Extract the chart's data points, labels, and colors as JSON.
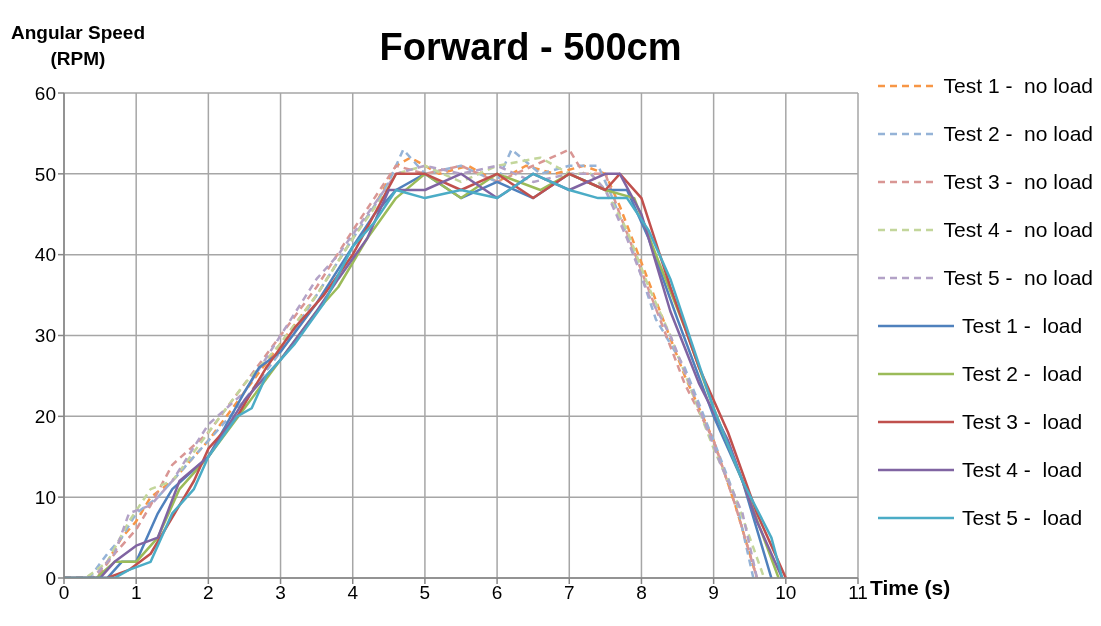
{
  "chart_data": {
    "type": "line",
    "title": "Forward - 500cm",
    "xlabel": "Time (s)",
    "ylabel": "Angular Speed (RPM)",
    "xlim": [
      0,
      11
    ],
    "xticks": [
      0,
      1,
      2,
      3,
      4,
      5,
      6,
      7,
      8,
      9,
      10,
      11
    ],
    "ylim": [
      0,
      60
    ],
    "yticks": [
      0,
      10,
      20,
      30,
      40,
      50,
      60
    ],
    "grid": true,
    "legend": "right",
    "marker": "none",
    "series": [
      {
        "name": "Test 1 -  no load",
        "color": "#f79646",
        "line_style": "dashed",
        "x": [
          0,
          0.4,
          0.6,
          0.8,
          1.0,
          1.2,
          1.5,
          2,
          2.5,
          3,
          3.5,
          4,
          4.3,
          4.6,
          4.8,
          5.2,
          5.6,
          6,
          6.4,
          6.8,
          7.2,
          7.5,
          7.7,
          8,
          8.3,
          8.6,
          9,
          9.3,
          9.6
        ],
        "values": [
          0,
          0,
          2,
          5,
          7,
          10,
          12,
          17,
          23,
          29,
          35,
          42,
          46,
          51,
          52,
          50,
          51,
          49,
          51,
          50,
          51,
          50,
          46,
          39,
          32,
          25,
          17,
          9,
          0
        ]
      },
      {
        "name": "Test 2 -  no load",
        "color": "#95b3d7",
        "line_style": "dashed",
        "x": [
          0,
          0.35,
          0.6,
          0.8,
          1.0,
          1.3,
          1.6,
          2,
          2.5,
          3,
          3.5,
          4,
          4.3,
          4.5,
          4.7,
          5,
          5.5,
          6,
          6.2,
          6.6,
          7,
          7.4,
          7.6,
          7.9,
          8.2,
          8.6,
          9,
          9.3,
          9.55
        ],
        "values": [
          0,
          0,
          3,
          5,
          8,
          10,
          13,
          17,
          22,
          28,
          35,
          42,
          46,
          49,
          53,
          50,
          51,
          49,
          53,
          50,
          51,
          51,
          47,
          40,
          32,
          26,
          17,
          10,
          0
        ]
      },
      {
        "name": "Test 3 -  no load",
        "color": "#d99694",
        "line_style": "dashed",
        "x": [
          0,
          0.45,
          0.7,
          1,
          1.2,
          1.5,
          2,
          2.5,
          3,
          3.5,
          4,
          4.3,
          4.6,
          5,
          5.5,
          6,
          6.5,
          7,
          7.2,
          7.5,
          7.7,
          8,
          8.3,
          8.6,
          9,
          9.3,
          9.6
        ],
        "values": [
          0,
          0,
          3,
          6,
          9,
          14,
          18,
          24,
          30,
          36,
          43,
          47,
          51,
          50,
          51,
          49,
          51,
          53,
          50,
          50,
          45,
          38,
          31,
          24,
          17,
          9,
          0
        ]
      },
      {
        "name": "Test 4 -  no load",
        "color": "#c3d69b",
        "line_style": "dashed",
        "x": [
          0,
          0.3,
          0.6,
          0.9,
          1.2,
          1.5,
          2,
          2.5,
          3,
          3.5,
          4,
          4.4,
          4.6,
          5,
          5.5,
          6,
          6.6,
          7,
          7.3,
          7.5,
          7.8,
          8.1,
          8.4,
          8.7,
          9,
          9.3,
          9.7
        ],
        "values": [
          0,
          0,
          2,
          7,
          11,
          12,
          18,
          24,
          29,
          35,
          42,
          47,
          50,
          51,
          49,
          51,
          52,
          50,
          50,
          48,
          43,
          36,
          30,
          23,
          16,
          10,
          0
        ]
      },
      {
        "name": "Test 5 -  no load",
        "color": "#b3a2c7",
        "line_style": "dashed",
        "x": [
          0,
          0.4,
          0.7,
          0.9,
          1.2,
          1.5,
          2,
          2.5,
          3,
          3.5,
          3.8,
          4.2,
          4.6,
          5,
          5.5,
          6,
          6.5,
          7,
          7.3,
          7.5,
          7.8,
          8.1,
          8.4,
          8.8,
          9.1,
          9.4,
          9.6
        ],
        "values": [
          0,
          0,
          3,
          8,
          9,
          12,
          19,
          23,
          30,
          37,
          40,
          45,
          50,
          51,
          50,
          51,
          49,
          50,
          50,
          48,
          42,
          35,
          30,
          21,
          14,
          8,
          0
        ]
      },
      {
        "name": "Test 1 -  load",
        "color": "#4f81bd",
        "line_style": "solid",
        "x": [
          0,
          0.6,
          0.8,
          1,
          1.3,
          1.5,
          2,
          2.5,
          2.7,
          3,
          3.5,
          4,
          4.3,
          4.6,
          5,
          5.5,
          6,
          6.5,
          7,
          7.5,
          7.8,
          8.1,
          8.5,
          9,
          9.4,
          9.8
        ],
        "values": [
          0,
          0,
          2,
          2,
          8,
          11,
          15,
          23,
          26,
          28,
          34,
          41,
          45,
          48,
          50,
          47,
          49,
          47,
          50,
          48,
          48,
          42,
          32,
          20,
          12,
          0
        ]
      },
      {
        "name": "Test 2 -  load",
        "color": "#9bbb59",
        "line_style": "solid",
        "x": [
          0,
          0.45,
          0.7,
          1,
          1.3,
          1.6,
          2,
          2.5,
          3,
          3.5,
          3.8,
          4.2,
          4.6,
          5,
          5.5,
          6,
          6.6,
          7,
          7.5,
          7.9,
          8.2,
          8.6,
          9,
          9.4,
          9.9
        ],
        "values": [
          0,
          0,
          2,
          2,
          5,
          11,
          15,
          21,
          27,
          33,
          36,
          42,
          47,
          50,
          47,
          50,
          48,
          50,
          48,
          47,
          40,
          31,
          21,
          12,
          0
        ]
      },
      {
        "name": "Test 3 -  load",
        "color": "#c0504d",
        "line_style": "solid",
        "x": [
          0,
          0.6,
          0.9,
          1.2,
          1.4,
          1.8,
          2,
          2.4,
          2.8,
          3.2,
          3.6,
          4,
          4.3,
          4.6,
          5,
          5.5,
          6,
          6.5,
          7,
          7.5,
          7.7,
          8,
          8.4,
          8.8,
          9.2,
          9.6,
          10
        ],
        "values": [
          0,
          0,
          1,
          3,
          6,
          12,
          16,
          20,
          26,
          31,
          35,
          40,
          45,
          50,
          50,
          48,
          50,
          47,
          50,
          48,
          50,
          47,
          36,
          26,
          18,
          8,
          0
        ]
      },
      {
        "name": "Test 4 -  load",
        "color": "#8064a2",
        "line_style": "solid",
        "x": [
          0,
          0.5,
          0.7,
          1,
          1.3,
          1.6,
          2,
          2.5,
          3,
          3.5,
          3.8,
          4.2,
          4.5,
          5,
          5.5,
          6,
          6.5,
          7,
          7.5,
          7.7,
          8,
          8.4,
          8.8,
          9.2,
          9.6,
          9.95
        ],
        "values": [
          0,
          0,
          2,
          4,
          5,
          12,
          15,
          22,
          27,
          33,
          37,
          42,
          48,
          48,
          50,
          47,
          50,
          48,
          50,
          50,
          45,
          33,
          24,
          17,
          7,
          0
        ]
      },
      {
        "name": "Test 5 -  load",
        "color": "#4bacc6",
        "line_style": "solid",
        "x": [
          0,
          0.7,
          0.9,
          1.2,
          1.5,
          1.8,
          2,
          2.4,
          2.6,
          2.8,
          3.2,
          3.6,
          4,
          4.3,
          4.6,
          5,
          5.5,
          6,
          6.5,
          7,
          7.4,
          7.8,
          8.1,
          8.4,
          8.7,
          9,
          9.4,
          9.8,
          9.95
        ],
        "values": [
          0,
          0,
          1,
          2,
          8,
          11,
          15,
          20,
          21,
          25,
          29,
          34,
          41,
          44,
          48,
          47,
          48,
          47,
          50,
          48,
          47,
          47,
          43,
          37,
          29,
          21,
          12,
          5,
          0
        ]
      }
    ]
  }
}
